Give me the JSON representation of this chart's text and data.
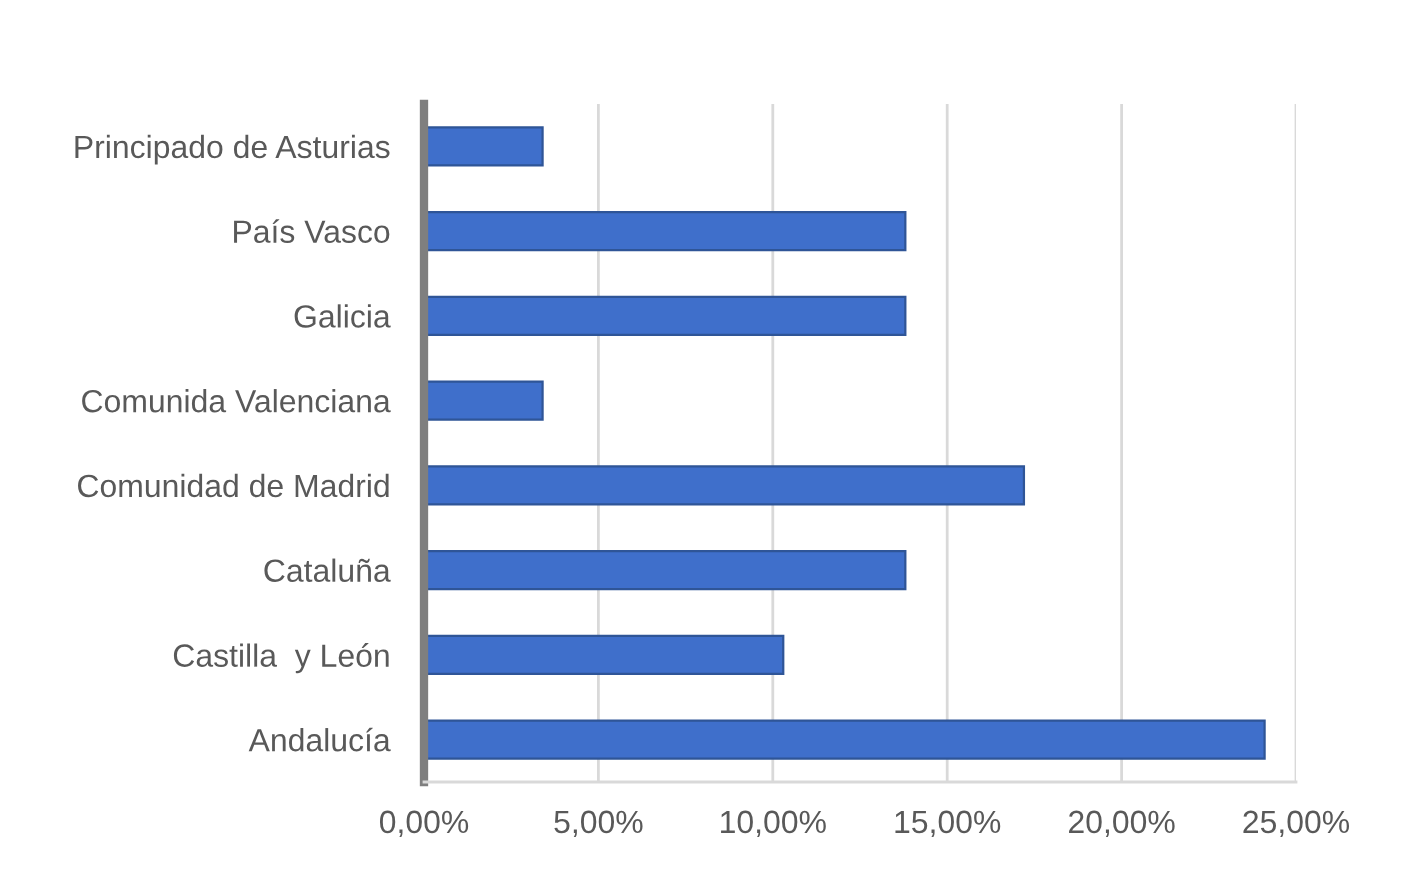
{
  "chart_data": {
    "type": "bar",
    "orientation": "horizontal",
    "categories": [
      "Principado de Asturias",
      "País Vasco",
      "Galicia",
      "Comunida Valenciana",
      "Comunidad de Madrid",
      "Cataluña",
      "Castilla  y León",
      "Andalucía"
    ],
    "values": [
      3.4,
      13.8,
      13.8,
      3.4,
      17.2,
      13.8,
      10.3,
      24.1
    ],
    "color": "#3f6fcb",
    "xlim": [
      0,
      25
    ],
    "xticks": [
      {
        "value": 0,
        "label": "0,00%"
      },
      {
        "value": 5,
        "label": "5,00%"
      },
      {
        "value": 10,
        "label": "10,00%"
      },
      {
        "value": 15,
        "label": "15,00%"
      },
      {
        "value": 20,
        "label": "20,00%"
      },
      {
        "value": 25,
        "label": "25,00%"
      }
    ],
    "grid": "x"
  }
}
